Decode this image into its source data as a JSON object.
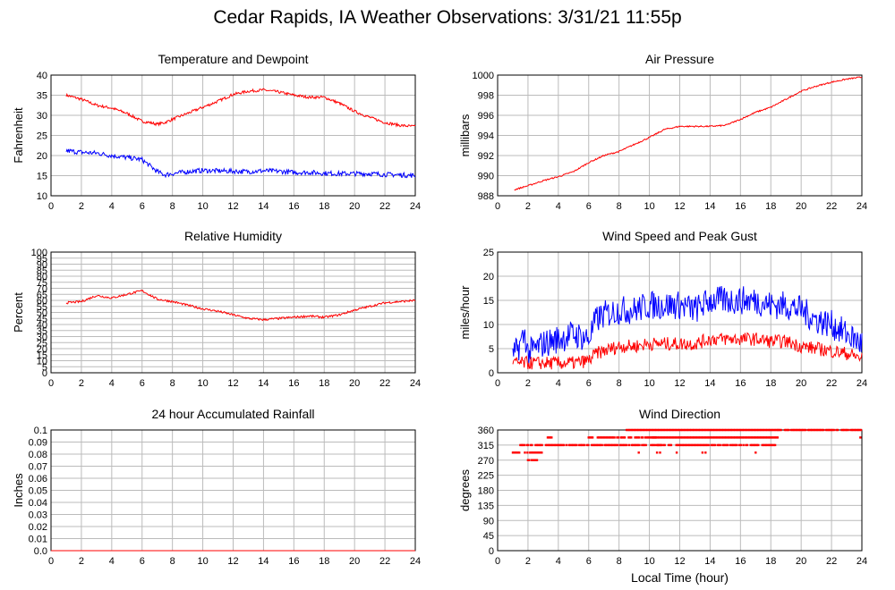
{
  "title": "Cedar Rapids, IA Weather Observations: 3/31/21 11:55p",
  "colors": {
    "primary": "#ff0000",
    "secondary": "#0000ff",
    "grid": "#bbbbbb"
  },
  "chart_data": [
    {
      "id": "temp",
      "type": "line",
      "title": "Temperature and Dewpoint",
      "xlabel": "",
      "ylabel": "Fahrenheit",
      "xlim": [
        0,
        24
      ],
      "ylim": [
        10,
        40
      ],
      "xticks": [
        0,
        2,
        4,
        6,
        8,
        10,
        12,
        14,
        16,
        18,
        20,
        22,
        24
      ],
      "yticks": [
        10,
        15,
        20,
        25,
        30,
        35,
        40
      ],
      "grid": true,
      "series": [
        {
          "color": "#ff0000",
          "x": [
            1,
            2,
            3,
            4,
            5,
            6,
            6.5,
            7,
            7.5,
            8,
            9,
            10,
            11,
            12,
            13,
            14,
            15,
            16,
            17,
            18,
            19,
            20,
            21,
            22,
            23,
            24
          ],
          "y": [
            35,
            34,
            32.5,
            31.8,
            30.5,
            28.5,
            28.2,
            27.8,
            28.2,
            29,
            30.5,
            32,
            33.5,
            35.2,
            36,
            36.3,
            35.8,
            35,
            34.5,
            34.5,
            33,
            31,
            29.5,
            28.2,
            27.5,
            27.2
          ],
          "noise": 0.35
        },
        {
          "color": "#0000ff",
          "x": [
            1,
            2,
            3,
            4,
            5,
            6,
            6.5,
            7,
            7.5,
            8,
            9,
            10,
            11,
            12,
            13,
            14,
            15,
            16,
            17,
            18,
            19,
            20,
            21,
            22,
            23,
            24
          ],
          "y": [
            21.2,
            20.8,
            20.6,
            20,
            19.5,
            19,
            17.5,
            16,
            15.2,
            15.5,
            16,
            16.3,
            16.2,
            16.1,
            16,
            16.2,
            16.1,
            15.8,
            15.8,
            15.6,
            15.5,
            15.5,
            15.5,
            15.3,
            15.2,
            15
          ],
          "noise": 0.6
        }
      ]
    },
    {
      "id": "pressure",
      "type": "line",
      "title": "Air Pressure",
      "xlabel": "",
      "ylabel": "millibars",
      "xlim": [
        0,
        24
      ],
      "ylim": [
        988,
        1000
      ],
      "xticks": [
        0,
        2,
        4,
        6,
        8,
        10,
        12,
        14,
        16,
        18,
        20,
        22,
        24
      ],
      "yticks": [
        988,
        990,
        992,
        994,
        996,
        998,
        1000
      ],
      "grid": true,
      "series": [
        {
          "color": "#ff0000",
          "x": [
            1.1,
            2,
            3,
            4,
            5,
            6,
            7,
            8,
            9,
            10,
            11,
            12,
            13,
            14,
            15,
            16,
            17,
            18,
            19,
            20,
            21,
            22,
            23,
            24
          ],
          "y": [
            988.6,
            989.0,
            989.5,
            989.9,
            990.4,
            991.3,
            992.0,
            992.4,
            993.1,
            993.8,
            994.6,
            994.9,
            994.9,
            994.9,
            995.0,
            995.6,
            996.3,
            996.8,
            997.6,
            998.4,
            998.9,
            999.3,
            999.6,
            999.8
          ],
          "noise": 0.07
        }
      ]
    },
    {
      "id": "humidity",
      "type": "line",
      "title": "Relative Humidity",
      "xlabel": "",
      "ylabel": "Percent",
      "xlim": [
        0,
        24
      ],
      "ylim": [
        0,
        100
      ],
      "xticks": [
        0,
        2,
        4,
        6,
        8,
        10,
        12,
        14,
        16,
        18,
        20,
        22,
        24
      ],
      "yticks": [
        0,
        5,
        10,
        15,
        20,
        25,
        30,
        35,
        40,
        45,
        50,
        55,
        60,
        65,
        70,
        75,
        80,
        85,
        90,
        95,
        100
      ],
      "grid": true,
      "series": [
        {
          "color": "#ff0000",
          "x": [
            1,
            2,
            3,
            4,
            5,
            6,
            7,
            8,
            9,
            10,
            11,
            12,
            13,
            14,
            15,
            16,
            17,
            18,
            19,
            20,
            21,
            22,
            23,
            24
          ],
          "y": [
            58,
            59,
            64,
            62,
            65,
            68,
            61,
            59,
            56,
            53,
            51,
            48,
            45,
            44,
            45,
            46,
            47,
            46,
            48,
            52,
            55,
            58,
            59,
            60
          ],
          "noise": 0.9
        }
      ]
    },
    {
      "id": "wind",
      "type": "line",
      "title": "Wind Speed and Peak Gust",
      "xlabel": "",
      "ylabel": "miles/hour",
      "xlim": [
        0,
        24
      ],
      "ylim": [
        0,
        25
      ],
      "xticks": [
        0,
        2,
        4,
        6,
        8,
        10,
        12,
        14,
        16,
        18,
        20,
        22,
        24
      ],
      "yticks": [
        0,
        5,
        10,
        15,
        20,
        25
      ],
      "grid": true,
      "series": [
        {
          "color": "#0000ff",
          "x": [
            1,
            1.8,
            2,
            3,
            4,
            5,
            6,
            6.5,
            7,
            8,
            9,
            10,
            11,
            12,
            13,
            14,
            15,
            16,
            17,
            18,
            19,
            20,
            21,
            22,
            23,
            24
          ],
          "y": [
            3,
            8,
            4,
            6,
            7,
            8,
            7,
            11,
            12,
            13,
            13,
            14,
            14,
            14,
            13,
            15,
            15,
            15,
            15,
            14,
            14,
            13,
            11,
            10,
            8,
            6
          ],
          "noise": 3.0
        },
        {
          "color": "#ff0000",
          "x": [
            1,
            2,
            3,
            4,
            5,
            6,
            6.5,
            7,
            8,
            9,
            10,
            11,
            12,
            13,
            14,
            15,
            16,
            17,
            18,
            19,
            20,
            21,
            22,
            23,
            24
          ],
          "y": [
            2,
            2,
            2,
            2,
            2,
            2.5,
            4,
            4.5,
            5.5,
            5.5,
            6,
            6,
            6,
            6,
            7,
            7,
            7,
            7,
            6.5,
            6.5,
            5.5,
            5,
            4.5,
            4,
            3
          ],
          "noise": 1.4
        }
      ]
    },
    {
      "id": "rain",
      "type": "line",
      "title": "24 hour Accumulated Rainfall",
      "xlabel": "",
      "ylabel": "Inches",
      "xlim": [
        0,
        24
      ],
      "ylim": [
        0,
        0.1
      ],
      "xticks": [
        0,
        2,
        4,
        6,
        8,
        10,
        12,
        14,
        16,
        18,
        20,
        22,
        24
      ],
      "yticks": [
        0.0,
        0.01,
        0.02,
        0.03,
        0.04,
        0.05,
        0.06,
        0.07,
        0.08,
        0.09,
        0.1
      ],
      "ytick_labels": [
        "0.0",
        "0.01",
        "0.02",
        "0.03",
        "0.04",
        "0.05",
        "0.06",
        "0.07",
        "0.08",
        "0.09",
        "0.1"
      ],
      "grid": true,
      "series": [
        {
          "color": "#ff0000",
          "x": [
            0,
            24
          ],
          "y": [
            0,
            0
          ],
          "noise": 0
        }
      ]
    },
    {
      "id": "direction",
      "type": "scatter",
      "title": "Wind Direction",
      "xlabel": "Local Time (hour)",
      "ylabel": "degrees",
      "xlim": [
        0,
        24
      ],
      "ylim": [
        0,
        360
      ],
      "xticks": [
        0,
        2,
        4,
        6,
        8,
        10,
        12,
        14,
        16,
        18,
        20,
        22,
        24
      ],
      "yticks": [
        0,
        45,
        90,
        135,
        180,
        225,
        270,
        315,
        360
      ],
      "grid": true,
      "series": [
        {
          "color": "#ff0000",
          "segments": [
            {
              "x0": 1.0,
              "x1": 1.5,
              "y": 292.5
            },
            {
              "x0": 1.5,
              "x1": 2.3,
              "y": 315
            },
            {
              "x0": 1.8,
              "x1": 3.0,
              "y": 292.5
            },
            {
              "x0": 2.0,
              "x1": 2.8,
              "y": 270
            },
            {
              "x0": 2.5,
              "x1": 3.6,
              "y": 315
            },
            {
              "x0": 3.3,
              "x1": 3.6,
              "y": 337.5
            },
            {
              "x0": 3.6,
              "x1": 6.0,
              "y": 315
            },
            {
              "x0": 6.0,
              "x1": 10.5,
              "y": 337.5
            },
            {
              "x0": 6.2,
              "x1": 10.8,
              "y": 315
            },
            {
              "x0": 8.5,
              "x1": 18.5,
              "y": 360
            },
            {
              "x0": 10.5,
              "x1": 16.5,
              "y": 315
            },
            {
              "x0": 10.2,
              "x1": 18.5,
              "y": 337.5
            },
            {
              "x0": 16.5,
              "x1": 18.3,
              "y": 315
            },
            {
              "x0": 18.5,
              "x1": 24.0,
              "y": 360
            }
          ],
          "points": [
            {
              "x": 9.3,
              "y": 292.5
            },
            {
              "x": 10.5,
              "y": 292.5
            },
            {
              "x": 10.7,
              "y": 292.5
            },
            {
              "x": 11.8,
              "y": 292.5
            },
            {
              "x": 13.5,
              "y": 292.5
            },
            {
              "x": 13.7,
              "y": 292.5
            },
            {
              "x": 17.0,
              "y": 292.5
            },
            {
              "x": 23.9,
              "y": 337.5
            }
          ]
        }
      ]
    }
  ]
}
